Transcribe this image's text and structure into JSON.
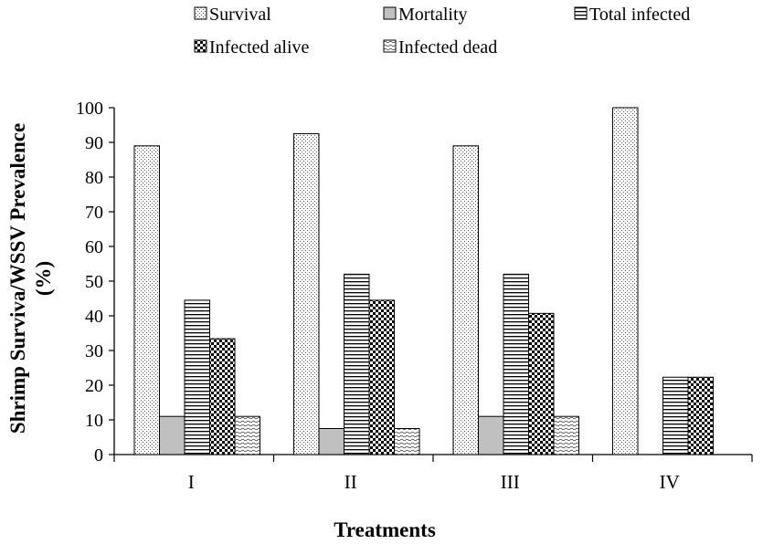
{
  "chart_data": {
    "type": "bar",
    "title": "",
    "xlabel": "Treatments",
    "ylabel_line1": "Shrimp Surviva/WSSV Prevalence",
    "ylabel_line2": "(%)",
    "ylim": [
      0,
      100
    ],
    "yticks": [
      "0",
      "10",
      "20",
      "30",
      "40",
      "50",
      "60",
      "70",
      "80",
      "90",
      "100"
    ],
    "categories": [
      "I",
      "II",
      "III",
      "IV"
    ],
    "legend_position": "top",
    "grid": false,
    "series": [
      {
        "name": "Survival",
        "pattern": "dots",
        "values": [
          89,
          92.5,
          89,
          100
        ]
      },
      {
        "name": "Mortality",
        "pattern": "gray",
        "values": [
          11,
          7.5,
          11,
          0
        ]
      },
      {
        "name": "Total infected",
        "pattern": "hlines",
        "values": [
          44.5,
          52,
          52,
          22.3
        ]
      },
      {
        "name": "Infected alive",
        "pattern": "checker",
        "values": [
          33.4,
          44.5,
          40.7,
          22.3
        ]
      },
      {
        "name": "Infected dead",
        "pattern": "waves",
        "values": [
          11,
          7.5,
          11,
          0
        ]
      }
    ]
  }
}
